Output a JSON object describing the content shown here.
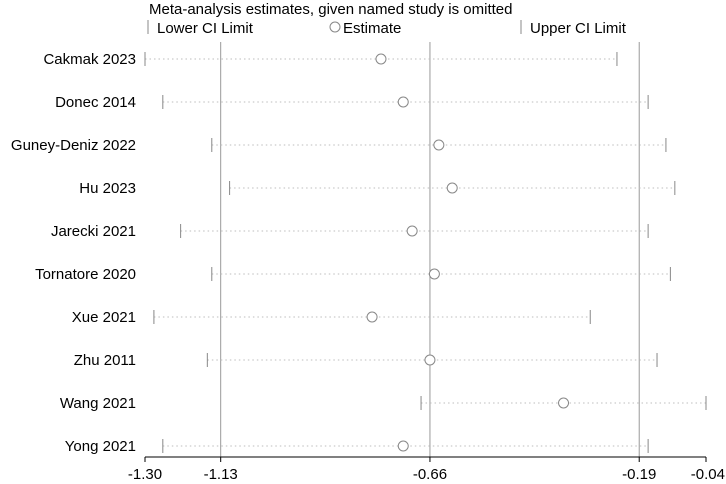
{
  "chart_data": {
    "type": "scatter",
    "title": "Meta-analysis estimates, given named study is omitted",
    "legend": {
      "placement": "top",
      "items": [
        {
          "symbol": "tick",
          "label": "Lower CI Limit"
        },
        {
          "symbol": "circle",
          "label": "Estimate"
        },
        {
          "symbol": "tick",
          "label": "Upper CI Limit"
        }
      ]
    },
    "xlim": [
      -1.3,
      -0.04
    ],
    "x_ticks": [
      -1.3,
      -1.13,
      -0.66,
      -0.19,
      -0.04
    ],
    "x_tick_labels": [
      "-1.30",
      "-1.13",
      "-0.66",
      "-0.19",
      "-0.04"
    ],
    "reference_lines": [
      -1.13,
      -0.66,
      -0.19
    ],
    "grid": false,
    "colors": {
      "axis": "#000000",
      "reference": "#999999",
      "marker": "#888888",
      "dotted": "#bdbdbd"
    },
    "studies": [
      {
        "name": "Cakmak 2023",
        "lower": -1.3,
        "estimate": -0.77,
        "upper": -0.24
      },
      {
        "name": "Donec 2014",
        "lower": -1.26,
        "estimate": -0.72,
        "upper": -0.17
      },
      {
        "name": "Guney-Deniz 2022",
        "lower": -1.15,
        "estimate": -0.64,
        "upper": -0.13
      },
      {
        "name": "Hu 2023",
        "lower": -1.11,
        "estimate": -0.61,
        "upper": -0.11
      },
      {
        "name": "Jarecki 2021",
        "lower": -1.22,
        "estimate": -0.7,
        "upper": -0.17
      },
      {
        "name": "Tornatore 2020",
        "lower": -1.15,
        "estimate": -0.65,
        "upper": -0.12
      },
      {
        "name": "Xue 2021",
        "lower": -1.28,
        "estimate": -0.79,
        "upper": -0.3
      },
      {
        "name": "Zhu 2011",
        "lower": -1.16,
        "estimate": -0.66,
        "upper": -0.15
      },
      {
        "name": "Wang 2021",
        "lower": -0.68,
        "estimate": -0.36,
        "upper": -0.04
      },
      {
        "name": "Yong 2021",
        "lower": -1.26,
        "estimate": -0.72,
        "upper": -0.17
      }
    ]
  }
}
